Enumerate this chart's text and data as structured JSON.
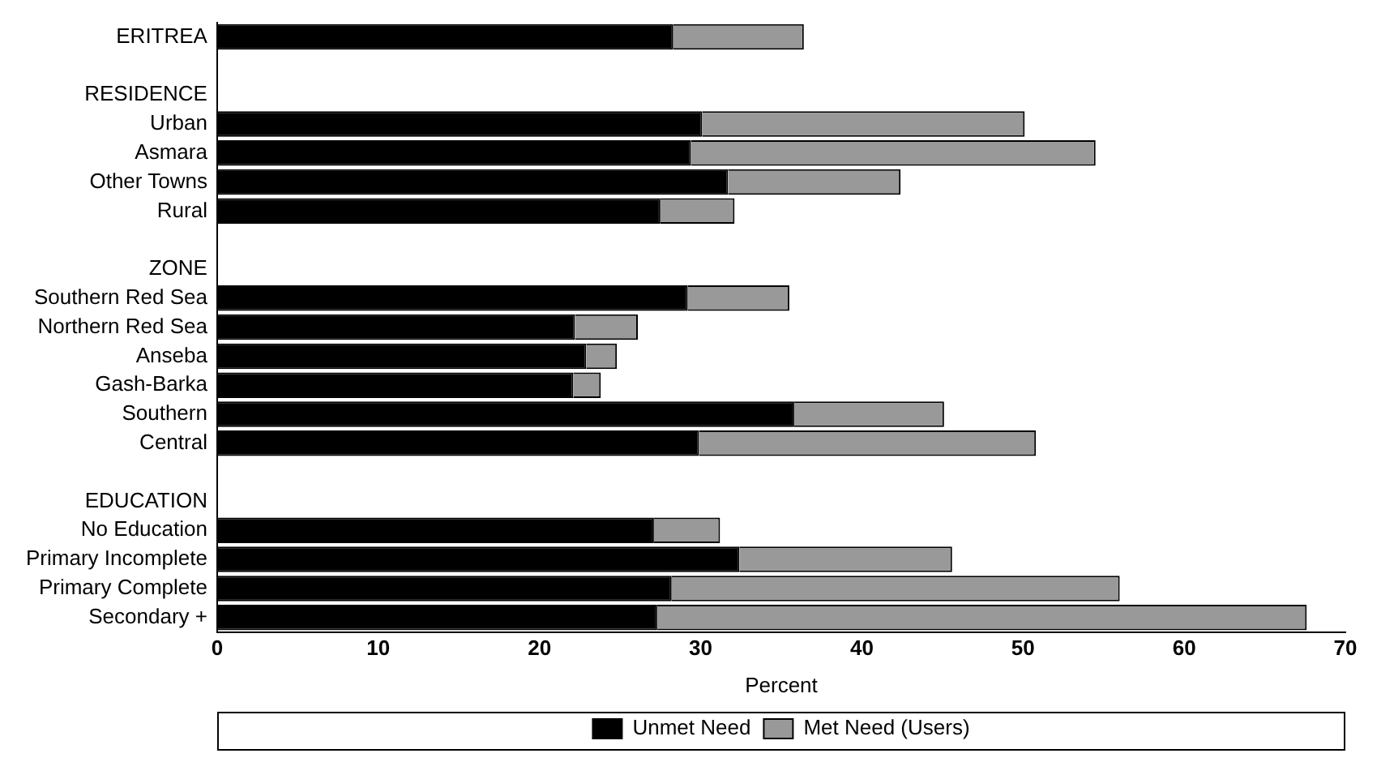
{
  "chart_data": {
    "type": "bar",
    "orientation": "horizontal",
    "stacked": true,
    "categories": [
      "ERITREA",
      null,
      "RESIDENCE",
      "Urban",
      "Asmara",
      "Other Towns",
      "Rural",
      null,
      "ZONE",
      "Southern Red Sea",
      "Northern Red Sea",
      "Anseba",
      "Gash-Barka",
      "Southern",
      "Central",
      null,
      "EDUCATION",
      "No Education",
      "Primary Incomplete",
      "Primary Complete",
      "Secondary +"
    ],
    "series": [
      {
        "name": "Unmet Need",
        "color": "#000000",
        "values": [
          28.3,
          null,
          null,
          30.1,
          29.4,
          31.7,
          27.5,
          null,
          null,
          29.2,
          22.2,
          22.9,
          22.1,
          35.8,
          29.9,
          null,
          null,
          27.1,
          32.4,
          28.2,
          27.3
        ]
      },
      {
        "name": "Met Need (Users)",
        "color": "#999999",
        "values": [
          8.1,
          null,
          null,
          20.0,
          25.1,
          10.7,
          4.6,
          null,
          null,
          6.3,
          3.9,
          1.9,
          1.7,
          9.3,
          20.9,
          null,
          null,
          4.1,
          13.2,
          27.8,
          40.3
        ]
      }
    ],
    "xlabel": "Percent",
    "xlim": [
      0,
      70
    ],
    "xticks": [
      0,
      10,
      20,
      30,
      40,
      50,
      60,
      70
    ],
    "grid": false,
    "legend": "bottom"
  }
}
